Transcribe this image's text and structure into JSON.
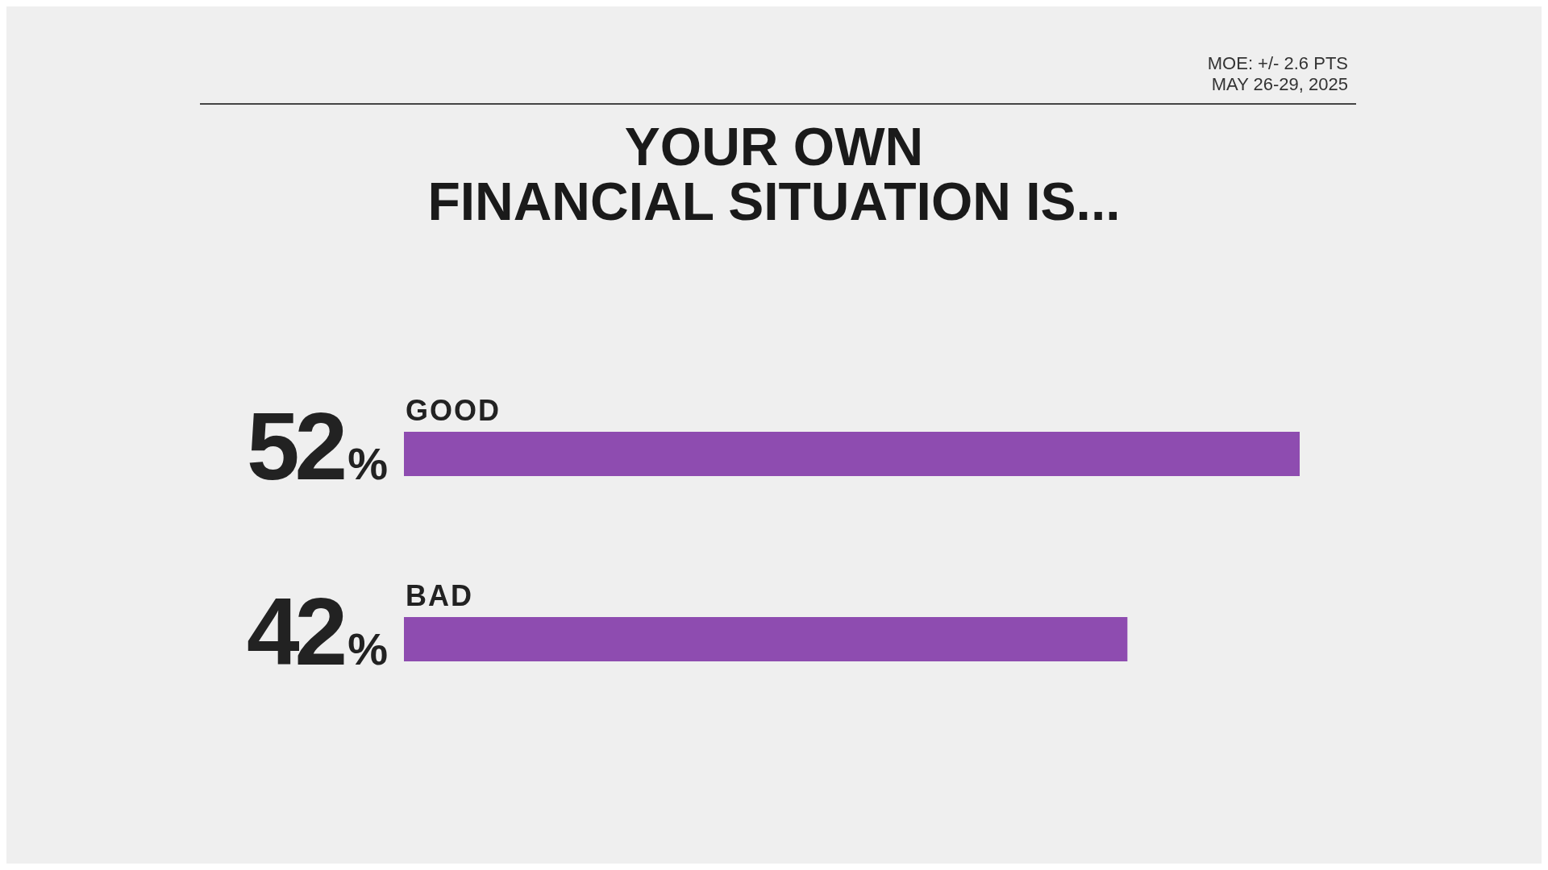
{
  "chart_data": {
    "type": "bar",
    "orientation": "horizontal",
    "title": "YOUR OWN\nFINANCIAL SITUATION IS...",
    "categories": [
      "GOOD",
      "BAD"
    ],
    "values": [
      52,
      42
    ],
    "value_labels": [
      "52%",
      "42%"
    ],
    "color": "#8e4cb0",
    "annotations": [
      "MOE: +/- 2.6 PTS",
      "MAY 26-29, 2025"
    ],
    "grid": false,
    "legend": false
  }
}
